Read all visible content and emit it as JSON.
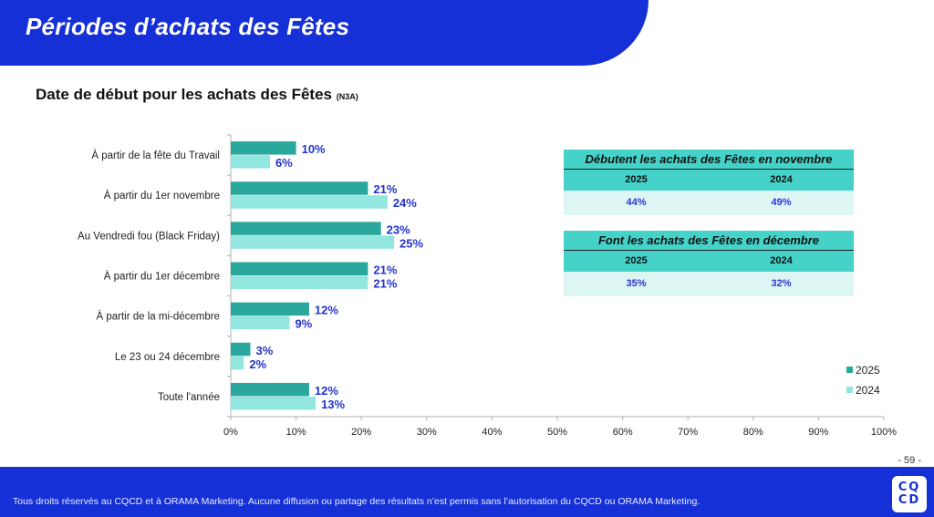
{
  "header": {
    "title": "Périodes d’achats des Fêtes"
  },
  "chart_title": {
    "main": "Date de début pour les achats des Fêtes",
    "sub": "(N3A)"
  },
  "colors": {
    "brand": "#1530d6",
    "series_2025": "#2aa89e",
    "series_2024": "#92e6e0",
    "value_label": "#2233cc"
  },
  "chart_data": {
    "type": "bar",
    "orientation": "horizontal",
    "title": "Date de début pour les achats des Fêtes (N3A)",
    "xlabel": "",
    "ylabel": "",
    "categories": [
      "À partir de la fête du Travail",
      "À partir du 1er novembre",
      "Au Vendredi fou (Black Friday)",
      "À partir du 1er décembre",
      "À partir de la mi-décembre",
      "Le 23 ou 24 décembre",
      "Toute l'année"
    ],
    "series": [
      {
        "name": "2025",
        "color": "#2aa89e",
        "values": [
          10,
          21,
          23,
          21,
          12,
          3,
          12
        ],
        "labels": [
          "10%",
          "21%",
          "23%",
          "21%",
          "12%",
          "3%",
          "12%"
        ]
      },
      {
        "name": "2024",
        "color": "#92e6e0",
        "values": [
          6,
          24,
          25,
          21,
          9,
          2,
          13
        ],
        "labels": [
          "6%",
          "24%",
          "25%",
          "21%",
          "9%",
          "2%",
          "13%"
        ]
      }
    ],
    "xlim": [
      0,
      100
    ],
    "xticks": [
      "0%",
      "10%",
      "20%",
      "30%",
      "40%",
      "50%",
      "60%",
      "70%",
      "80%",
      "90%",
      "100%"
    ],
    "grid": false,
    "legend": {
      "position": "bottom-right",
      "entries": [
        "2025",
        "2024"
      ]
    }
  },
  "tables": [
    {
      "title": "Débutent les achats des Fêtes en novembre",
      "headers": [
        "2025",
        "2024"
      ],
      "values": [
        "44%",
        "49%"
      ]
    },
    {
      "title": "Font les achats des Fêtes en décembre",
      "headers": [
        "2025",
        "2024"
      ],
      "values": [
        "35%",
        "32%"
      ]
    }
  ],
  "page_number": "- 59 -",
  "footer": {
    "text": "Tous droits réservés au CQCD et à ORAMA Marketing. Aucune diffusion ou partage des résultats n’est permis sans l’autorisation du CQCD ou ORAMA Marketing.",
    "logo_line1": "CQ",
    "logo_line2": "CD"
  }
}
